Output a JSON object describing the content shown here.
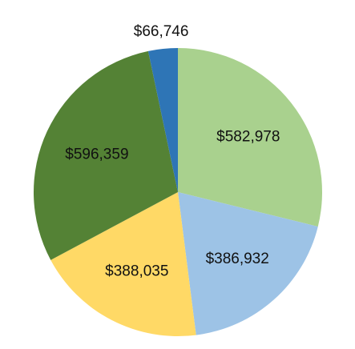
{
  "chart_data": {
    "type": "pie",
    "slices": [
      {
        "label": "$582,978",
        "value": 582978,
        "color": "#A9D18E"
      },
      {
        "label": "$386,932",
        "value": 386932,
        "color": "#9DC3E6"
      },
      {
        "label": "$388,035",
        "value": 388035,
        "color": "#FFD966"
      },
      {
        "label": "$596,359",
        "value": 596359,
        "color": "#548235"
      },
      {
        "label": "$66,746",
        "value": 66746,
        "color": "#2E75B6"
      }
    ],
    "start_angle": "12 o'clock",
    "direction": "clockwise",
    "legend": "none"
  }
}
